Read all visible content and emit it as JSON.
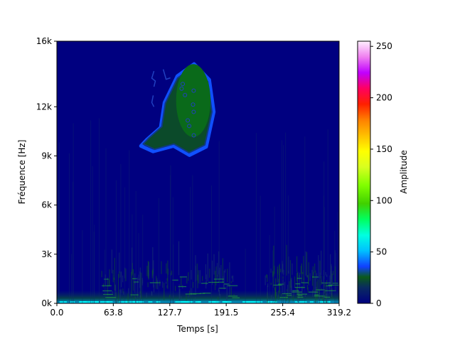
{
  "chart_data": {
    "type": "heatmap",
    "subtype": "spectrogram",
    "title": "",
    "xlabel": "Temps [s]",
    "ylabel": "Fréquence [Hz]",
    "colorbar_label": "Amplitude",
    "colormap": "gist_ncar",
    "xlim": [
      0.0,
      319.2
    ],
    "ylim": [
      0,
      16000
    ],
    "clim": [
      0,
      255
    ],
    "x_ticks": [
      {
        "value": 0.0,
        "label": "0.0"
      },
      {
        "value": 63.8,
        "label": "63.8"
      },
      {
        "value": 127.7,
        "label": "127.7"
      },
      {
        "value": 191.5,
        "label": "191.5"
      },
      {
        "value": 255.4,
        "label": "255.4"
      },
      {
        "value": 319.2,
        "label": "319.2"
      }
    ],
    "y_ticks": [
      {
        "value": 0,
        "label": "0k"
      },
      {
        "value": 3000,
        "label": "3k"
      },
      {
        "value": 6000,
        "label": "6k"
      },
      {
        "value": 9000,
        "label": "9k"
      },
      {
        "value": 12000,
        "label": "12k"
      },
      {
        "value": 16000,
        "label": "16k"
      }
    ],
    "colorbar_ticks": [
      {
        "value": 0,
        "label": "0"
      },
      {
        "value": 50,
        "label": "50"
      },
      {
        "value": 100,
        "label": "100"
      },
      {
        "value": 150,
        "label": "150"
      },
      {
        "value": 200,
        "label": "200"
      },
      {
        "value": 250,
        "label": "250"
      }
    ],
    "background_value": 0,
    "features": [
      {
        "name": "low-frequency-energy",
        "t_range": [
          0,
          319.2
        ],
        "f_range": [
          0,
          800
        ],
        "value": 45
      },
      {
        "name": "speech-burst-1",
        "t_range": [
          50,
          200
        ],
        "f_range": [
          0,
          3500
        ],
        "value": 20
      },
      {
        "name": "speech-burst-2",
        "t_range": [
          235,
          315
        ],
        "f_range": [
          0,
          3500
        ],
        "value": 20
      },
      {
        "name": "embedded-image-blob",
        "t_range": [
          96,
          177
        ],
        "f_range": [
          9300,
          14600
        ],
        "value": 18
      }
    ]
  }
}
